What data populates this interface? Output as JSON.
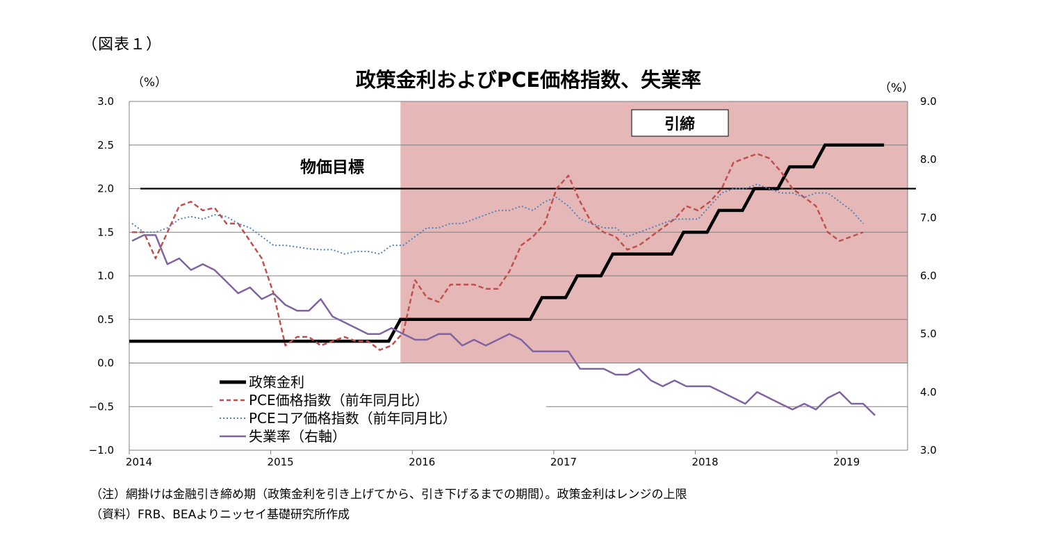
{
  "figure_label": "（図表１）",
  "chart_data": {
    "type": "line",
    "title": "政策金利およびPCE価格指数、失業率",
    "left_axis_unit": "（%）",
    "right_axis_unit": "（%）",
    "ylim_left": [
      -1.0,
      3.0
    ],
    "ylim_right": [
      3.0,
      9.0
    ],
    "left_ticks": [
      "3.0",
      "2.5",
      "2.0",
      "1.5",
      "1.0",
      "0.5",
      "0.0",
      "−0.5",
      "−1.0"
    ],
    "right_ticks": [
      "9.0",
      "8.0",
      "7.0",
      "6.0",
      "5.0",
      "4.0",
      "3.0"
    ],
    "x_ticks": [
      "2014",
      "2015",
      "2016",
      "2017",
      "2018",
      "2019"
    ],
    "x_start": "2014-01",
    "x_end": "2019-07",
    "grid": true,
    "target_label": "物価目標",
    "target_value": 2.0,
    "shade_label": "引締",
    "shade_start": "2015-12",
    "shade_end": "2019-07",
    "series": [
      {
        "name": "政策金利",
        "axis": "left",
        "style": "solid-thick",
        "color": "#000000",
        "points": [
          [
            "2014-01",
            0.25
          ],
          [
            "2015-11",
            0.25
          ],
          [
            "2015-12",
            0.5
          ],
          [
            "2016-11",
            0.5
          ],
          [
            "2016-12",
            0.75
          ],
          [
            "2017-02",
            0.75
          ],
          [
            "2017-03",
            1.0
          ],
          [
            "2017-05",
            1.0
          ],
          [
            "2017-06",
            1.25
          ],
          [
            "2017-11",
            1.25
          ],
          [
            "2017-12",
            1.5
          ],
          [
            "2018-02",
            1.5
          ],
          [
            "2018-03",
            1.75
          ],
          [
            "2018-05",
            1.75
          ],
          [
            "2018-06",
            2.0
          ],
          [
            "2018-08",
            2.0
          ],
          [
            "2018-09",
            2.25
          ],
          [
            "2018-11",
            2.25
          ],
          [
            "2018-12",
            2.5
          ],
          [
            "2019-05",
            2.5
          ]
        ]
      },
      {
        "name": "PCE価格指数（前年同月比）",
        "axis": "left",
        "style": "dashed",
        "color": "#c0504d",
        "values": [
          1.5,
          1.5,
          1.2,
          1.5,
          1.8,
          1.85,
          1.75,
          1.78,
          1.6,
          1.6,
          1.4,
          1.2,
          0.8,
          0.2,
          0.3,
          0.3,
          0.2,
          0.25,
          0.3,
          0.25,
          0.25,
          0.15,
          0.2,
          0.35,
          0.95,
          0.75,
          0.7,
          0.9,
          0.9,
          0.9,
          0.85,
          0.85,
          1.05,
          1.35,
          1.45,
          1.6,
          2.0,
          2.15,
          1.85,
          1.6,
          1.5,
          1.45,
          1.3,
          1.35,
          1.45,
          1.55,
          1.65,
          1.8,
          1.75,
          1.85,
          2.0,
          2.3,
          2.35,
          2.4,
          2.35,
          2.2,
          2.0,
          1.9,
          1.8,
          1.5,
          1.4,
          1.45,
          1.5
        ]
      },
      {
        "name": "PCEコア価格指数（前年同月比）",
        "axis": "left",
        "style": "dotted",
        "color": "#4f81bd",
        "values": [
          1.6,
          1.5,
          1.5,
          1.55,
          1.65,
          1.68,
          1.65,
          1.7,
          1.68,
          1.6,
          1.55,
          1.45,
          1.35,
          1.35,
          1.33,
          1.31,
          1.3,
          1.3,
          1.25,
          1.28,
          1.28,
          1.25,
          1.35,
          1.35,
          1.45,
          1.55,
          1.55,
          1.6,
          1.6,
          1.65,
          1.7,
          1.75,
          1.75,
          1.8,
          1.75,
          1.85,
          1.9,
          1.8,
          1.65,
          1.6,
          1.55,
          1.55,
          1.45,
          1.5,
          1.55,
          1.6,
          1.65,
          1.65,
          1.65,
          1.8,
          1.95,
          2.0,
          2.0,
          2.05,
          2.0,
          1.95,
          1.95,
          1.9,
          1.95,
          1.95,
          1.85,
          1.75,
          1.6
        ]
      },
      {
        "name": "失業率（右軸）",
        "axis": "right",
        "style": "solid",
        "color": "#8064a2",
        "values": [
          6.6,
          6.7,
          6.7,
          6.2,
          6.3,
          6.1,
          6.2,
          6.1,
          5.9,
          5.7,
          5.8,
          5.6,
          5.7,
          5.5,
          5.4,
          5.4,
          5.6,
          5.3,
          5.2,
          5.1,
          5.0,
          5.0,
          5.1,
          5.0,
          4.9,
          4.9,
          5.0,
          5.0,
          4.8,
          4.9,
          4.8,
          4.9,
          5.0,
          4.9,
          4.7,
          4.7,
          4.7,
          4.7,
          4.4,
          4.4,
          4.4,
          4.3,
          4.3,
          4.4,
          4.2,
          4.1,
          4.2,
          4.1,
          4.1,
          4.1,
          4.0,
          3.9,
          3.8,
          4.0,
          3.9,
          3.8,
          3.7,
          3.8,
          3.7,
          3.9,
          4.0,
          3.8,
          3.8,
          3.6
        ]
      }
    ],
    "legend_position": "bottom-left"
  },
  "notes": [
    "（注）網掛けは金融引き締め期（政策金利を引き上げてから、引き下げるまでの期間）。政策金利はレンジの上限",
    "（資料）FRB、BEAよりニッセイ基礎研究所作成"
  ]
}
